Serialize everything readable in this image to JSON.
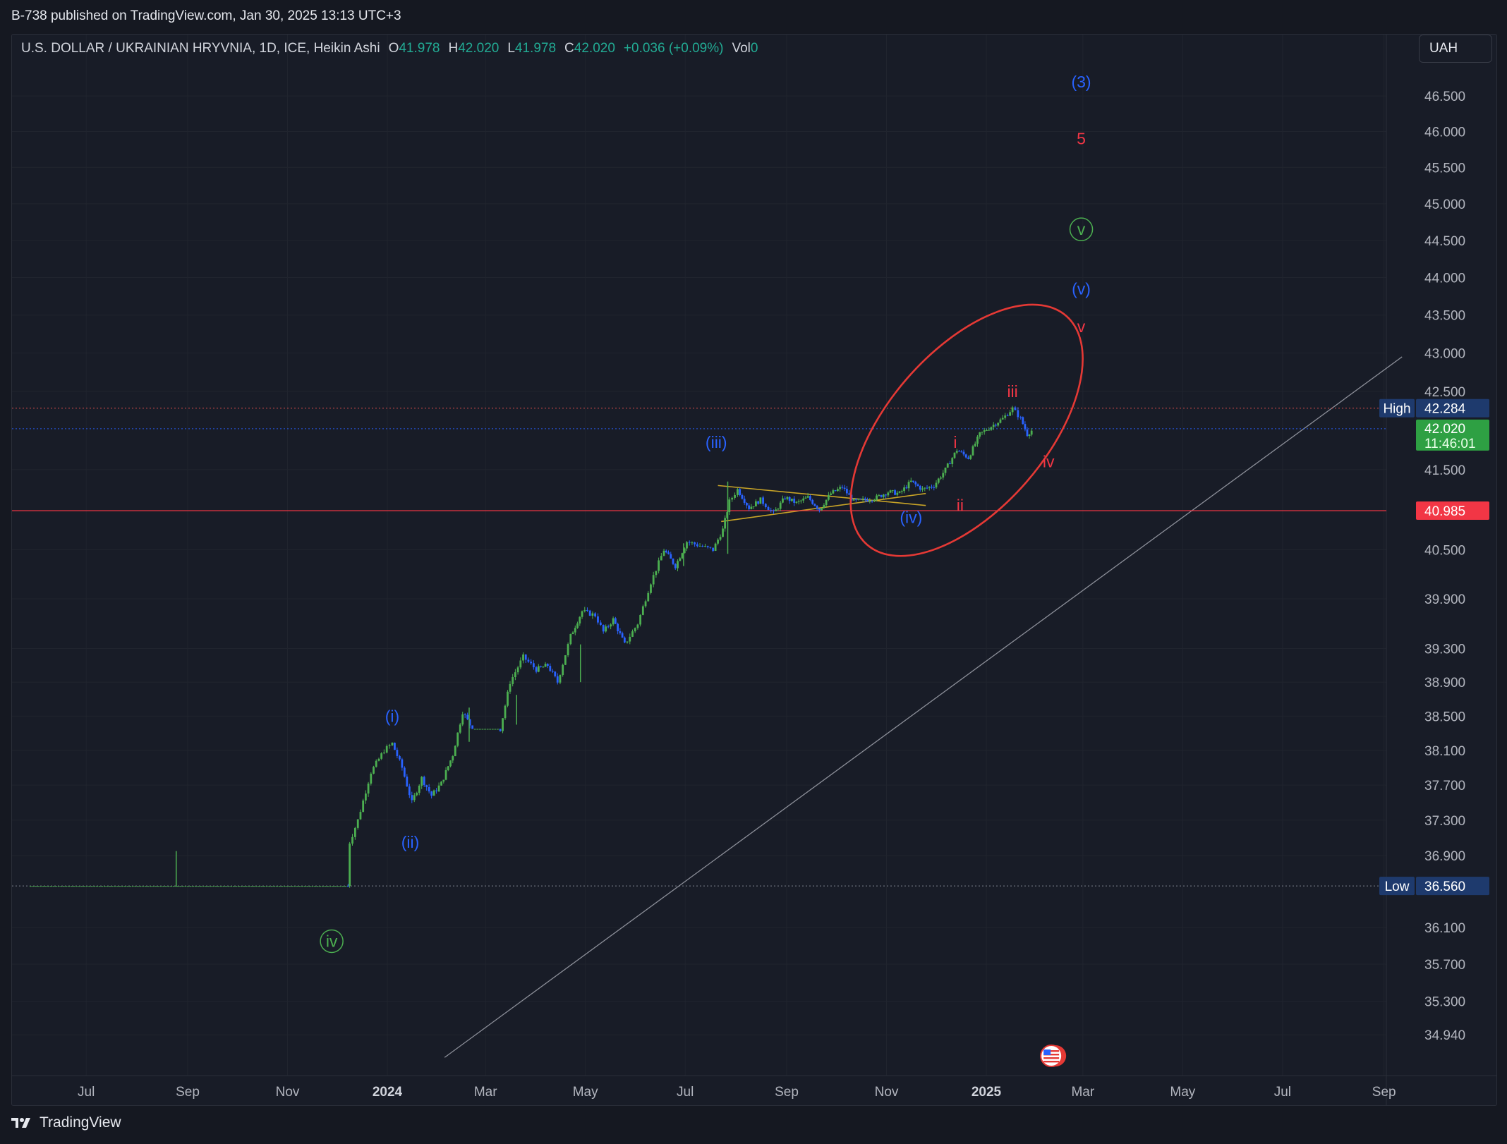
{
  "header": {
    "published": "B-738 published on TradingView.com, Jan 30, 2025 13:13 UTC+3"
  },
  "legend": {
    "symbol": "U.S. DOLLAR / UKRAINIAN HRYVNIA, 1D, ICE, Heikin Ashi",
    "o_label": "O",
    "o_value": "41.978",
    "h_label": "H",
    "h_value": "42.020",
    "l_label": "L",
    "l_value": "41.978",
    "c_label": "C",
    "c_value": "42.020",
    "change": "+0.036 (+0.09%)",
    "vol_label": "Vol",
    "vol_value": "0"
  },
  "currency_button": "UAH",
  "footer": {
    "brand": "TradingView"
  },
  "colors": {
    "up": "#4caf50",
    "down": "#2962ff",
    "high_line": "#ef5350",
    "last_line": "#2962ff",
    "level_line": "#f23645",
    "trendline": "#c8a427",
    "diagonal": "#8c8f99",
    "wave_blue": "#2962ff",
    "wave_red": "#f23645",
    "wave_green": "#4caf50"
  },
  "chart_data": {
    "type": "candlestick",
    "chart_style": "Heikin Ashi",
    "interval": "1D",
    "currency": "UAH",
    "x_axis": {
      "ticks": [
        "Jul",
        "Sep",
        "Nov",
        "2024",
        "Mar",
        "May",
        "Jul",
        "Sep",
        "Nov",
        "2025",
        "Mar",
        "May",
        "Jul",
        "Sep"
      ],
      "bold": [
        "2024",
        "2025"
      ]
    },
    "y_axis": {
      "scale": "log",
      "range": [
        34.72,
        46.8
      ],
      "ticks": [
        "46.500",
        "46.000",
        "45.500",
        "45.000",
        "44.500",
        "44.000",
        "43.500",
        "43.000",
        "42.500",
        "41.500",
        "40.500",
        "39.900",
        "39.300",
        "38.900",
        "38.500",
        "38.100",
        "37.700",
        "37.300",
        "36.900",
        "36.100",
        "35.700",
        "35.300",
        "34.940"
      ]
    },
    "price_path": [
      [
        "2023-05-28",
        36.56
      ],
      [
        "2023-08-25",
        36.56
      ],
      [
        "2023-08-26",
        36.56
      ],
      [
        "2023-12-08",
        36.56
      ],
      [
        "2023-12-09",
        37.05
      ],
      [
        "2023-12-14",
        37.3
      ],
      [
        "2023-12-22",
        37.85
      ],
      [
        "2023-12-30",
        38.1
      ],
      [
        "2024-01-04",
        38.18
      ],
      [
        "2024-01-10",
        37.9
      ],
      [
        "2024-01-16",
        37.5
      ],
      [
        "2024-01-22",
        37.78
      ],
      [
        "2024-01-28",
        37.58
      ],
      [
        "2024-02-03",
        37.72
      ],
      [
        "2024-02-10",
        38.05
      ],
      [
        "2024-02-16",
        38.55
      ],
      [
        "2024-02-22",
        38.35
      ],
      [
        "2024-03-10",
        38.35
      ],
      [
        "2024-03-16",
        38.9
      ],
      [
        "2024-03-24",
        39.2
      ],
      [
        "2024-04-01",
        39.05
      ],
      [
        "2024-04-08",
        39.1
      ],
      [
        "2024-04-14",
        38.9
      ],
      [
        "2024-04-22",
        39.45
      ],
      [
        "2024-04-29",
        39.75
      ],
      [
        "2024-05-07",
        39.7
      ],
      [
        "2024-05-12",
        39.5
      ],
      [
        "2024-05-18",
        39.65
      ],
      [
        "2024-05-25",
        39.35
      ],
      [
        "2024-06-02",
        39.6
      ],
      [
        "2024-06-10",
        40.1
      ],
      [
        "2024-06-18",
        40.5
      ],
      [
        "2024-06-25",
        40.3
      ],
      [
        "2024-07-02",
        40.6
      ],
      [
        "2024-07-10",
        40.55
      ],
      [
        "2024-07-18",
        40.5
      ],
      [
        "2024-07-24",
        40.75
      ],
      [
        "2024-07-28",
        41.1
      ],
      [
        "2024-08-02",
        41.25
      ],
      [
        "2024-08-09",
        41.02
      ],
      [
        "2024-08-16",
        41.12
      ],
      [
        "2024-08-24",
        40.95
      ],
      [
        "2024-08-31",
        41.15
      ],
      [
        "2024-09-07",
        41.08
      ],
      [
        "2024-09-14",
        41.15
      ],
      [
        "2024-09-21",
        41.0
      ],
      [
        "2024-09-28",
        41.2
      ],
      [
        "2024-10-05",
        41.28
      ],
      [
        "2024-10-12",
        41.1
      ],
      [
        "2024-10-19",
        41.12
      ],
      [
        "2024-10-26",
        41.15
      ],
      [
        "2024-11-02",
        41.22
      ],
      [
        "2024-11-09",
        41.2
      ],
      [
        "2024-11-16",
        41.35
      ],
      [
        "2024-11-23",
        41.25
      ],
      [
        "2024-11-30",
        41.3
      ],
      [
        "2024-12-07",
        41.5
      ],
      [
        "2024-12-14",
        41.75
      ],
      [
        "2024-12-21",
        41.65
      ],
      [
        "2024-12-28",
        41.95
      ],
      [
        "2025-01-04",
        42.05
      ],
      [
        "2025-01-11",
        42.15
      ],
      [
        "2025-01-17",
        42.28
      ],
      [
        "2025-01-22",
        42.15
      ],
      [
        "2025-01-26",
        41.95
      ],
      [
        "2025-01-30",
        42.02
      ]
    ],
    "spikes": [
      [
        "2023-08-25",
        36.56,
        36.95
      ],
      [
        "2024-02-20",
        38.2,
        38.6
      ],
      [
        "2024-03-20",
        38.4,
        38.75
      ],
      [
        "2024-04-28",
        38.9,
        39.35
      ],
      [
        "2024-06-30",
        40.3,
        40.58
      ],
      [
        "2024-07-27",
        40.45,
        41.35
      ]
    ],
    "price_lines": [
      {
        "label": "High",
        "value": 42.284,
        "display": "42.284",
        "style": "dotted"
      },
      {
        "label": "Last",
        "value": 42.02,
        "display": "42.020",
        "countdown": "11:46:01",
        "style": "dotted"
      },
      {
        "label": "",
        "value": 40.985,
        "display": "40.985",
        "style": "solid"
      },
      {
        "label": "Low",
        "value": 36.56,
        "display": "36.560",
        "style": "dotted"
      }
    ],
    "trendlines": [
      {
        "from": [
          "2024-07-21",
          41.3
        ],
        "to": [
          "2024-11-25",
          41.05
        ],
        "kind": "triangle"
      },
      {
        "from": [
          "2024-07-23",
          40.85
        ],
        "to": [
          "2024-11-25",
          41.2
        ],
        "kind": "triangle"
      },
      {
        "from": [
          "2024-02-05",
          34.7
        ],
        "to": [
          "2025-09-12",
          42.95
        ],
        "kind": "diagonal"
      }
    ],
    "ellipse": {
      "center": [
        "2024-12-20",
        42.0
      ],
      "shape": "rotated ellipse"
    },
    "wave_labels": [
      {
        "text": "(3)",
        "date": "2025-02-28",
        "price": 46.7,
        "color": "blue"
      },
      {
        "text": "5",
        "date": "2025-02-28",
        "price": 45.9,
        "color": "red"
      },
      {
        "text": "v",
        "date": "2025-02-28",
        "price": 44.65,
        "color": "green",
        "circled": true
      },
      {
        "text": "(v)",
        "date": "2025-02-28",
        "price": 43.85,
        "color": "blue"
      },
      {
        "text": "v",
        "date": "2025-02-28",
        "price": 43.35,
        "color": "red"
      },
      {
        "text": "iii",
        "date": "2025-01-17",
        "price": 42.5,
        "color": "red"
      },
      {
        "text": "(iii)",
        "date": "2024-07-20",
        "price": 41.85,
        "color": "blue"
      },
      {
        "text": "i",
        "date": "2024-12-13",
        "price": 41.85,
        "color": "red"
      },
      {
        "text": "iv",
        "date": "2025-02-08",
        "price": 41.6,
        "color": "red"
      },
      {
        "text": "ii",
        "date": "2024-12-16",
        "price": 41.05,
        "color": "red"
      },
      {
        "text": "(iv)",
        "date": "2024-11-16",
        "price": 40.9,
        "color": "blue"
      },
      {
        "text": "(i)",
        "date": "2024-01-04",
        "price": 38.5,
        "color": "blue"
      },
      {
        "text": "(ii)",
        "date": "2024-01-15",
        "price": 37.05,
        "color": "blue"
      },
      {
        "text": "iv",
        "date": "2023-11-28",
        "price": 35.95,
        "color": "green",
        "circled": true
      }
    ],
    "event_flag": {
      "date": "2025-02-08",
      "icon": "us-flag-icon"
    }
  }
}
